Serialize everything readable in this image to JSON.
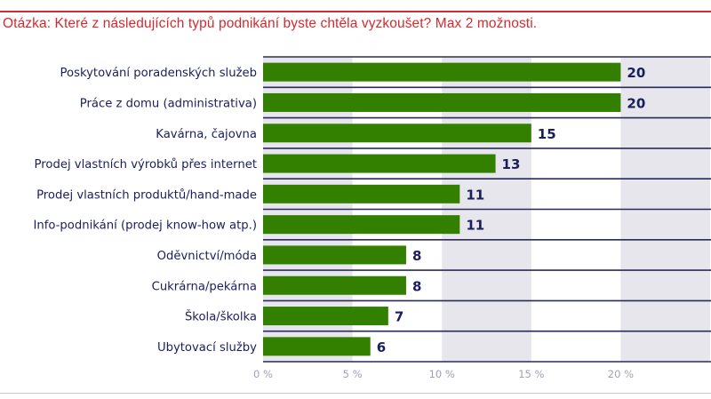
{
  "title": "Otázka: Které z následujících typů podnikání byste chtěla vyzkoušet? Max 2 možnosti.",
  "chart_data": {
    "type": "bar",
    "orientation": "horizontal",
    "title": "Otázka: Které z následujících typů podnikání byste chtěla vyzkoušet? Max 2 možnosti.",
    "categories": [
      "Poskytování poradenských služeb",
      "Práce z domu (administrativa)",
      "Kavárna, čajovna",
      "Prodej vlastních výrobků přes internet",
      "Prodej vlastních produktů/hand-made",
      "Info-podnikání (prodej know-how atp.)",
      "Oděvnictví/móda",
      "Cukrárna/pekárna",
      "Škola/školka",
      "Ubytovací služby"
    ],
    "values": [
      20,
      20,
      15,
      13,
      11,
      11,
      8,
      8,
      7,
      6
    ],
    "xlim": [
      0,
      25
    ],
    "xticks": [
      "0 %",
      "5 %",
      "10 %",
      "15 %",
      "20 %"
    ],
    "tick_values": [
      0,
      5,
      10,
      15,
      20
    ],
    "grid": "alternating vertical bands",
    "colors": {
      "bar": "#338000",
      "band": "#e6e6ec",
      "separator": "#2a2a5a",
      "label": "#1a1f5c",
      "tick": "#a0a0b8",
      "title": "#d42a2f"
    }
  }
}
